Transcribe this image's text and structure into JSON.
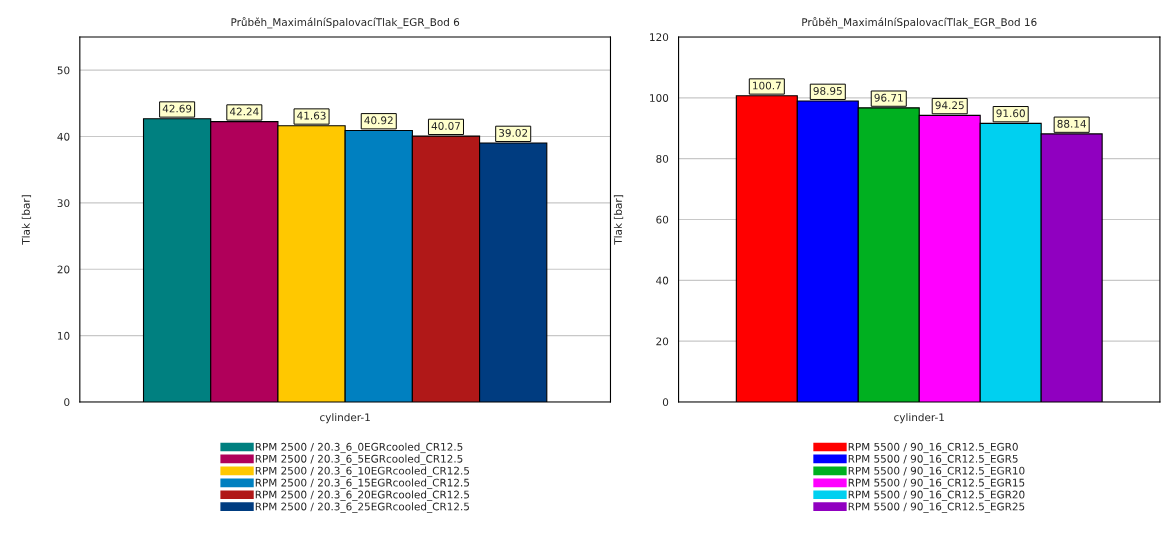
{
  "chart_data": [
    {
      "type": "bar",
      "title": "Průběh_MaximálníSpalovacíTlak_EGR_Bod 6",
      "ylabel": "Tlak [bar]",
      "categories": [
        "cylinder-1"
      ],
      "ylim": [
        0,
        55
      ],
      "yticks": [
        0,
        10,
        20,
        30,
        40,
        50
      ],
      "grid": "y",
      "legend": "bottom",
      "series": [
        {
          "name": "RPM 2500 / 20.3_6_0EGRcooled_CR12.5",
          "color": "#008080",
          "values": [
            42.69
          ],
          "value_labels": [
            "42.69"
          ]
        },
        {
          "name": "RPM 2500 / 20.3_6_5EGRcooled_CR12.5",
          "color": "#b0005a",
          "values": [
            42.24
          ],
          "value_labels": [
            "42.24"
          ]
        },
        {
          "name": "RPM 2500 / 20.3_6_10EGRcooled_CR12.5",
          "color": "#ffc800",
          "values": [
            41.63
          ],
          "value_labels": [
            "41.63"
          ]
        },
        {
          "name": "RPM 2500 / 20.3_6_15EGRcooled_CR12.5",
          "color": "#0080c0",
          "values": [
            40.92
          ],
          "value_labels": [
            "40.92"
          ]
        },
        {
          "name": "RPM 2500 / 20.3_6_20EGRcooled_CR12.5",
          "color": "#b01818",
          "values": [
            40.07
          ],
          "value_labels": [
            "40.07"
          ]
        },
        {
          "name": "RPM 2500 / 20.3_6_25EGRcooled_CR12.5",
          "color": "#003c80",
          "values": [
            39.02
          ],
          "value_labels": [
            "39.02"
          ]
        }
      ]
    },
    {
      "type": "bar",
      "title": "Průběh_MaximálníSpalovacíTlak_EGR_Bod 16",
      "ylabel": "Tlak [bar]",
      "categories": [
        "cylinder-1"
      ],
      "ylim": [
        0,
        120
      ],
      "yticks": [
        0,
        20,
        40,
        60,
        80,
        100,
        120
      ],
      "grid": "y",
      "legend": "bottom",
      "series": [
        {
          "name": "RPM 5500 / 90_16_CR12.5_EGR0",
          "color": "#ff0000",
          "values": [
            100.7
          ],
          "value_labels": [
            "100.7"
          ]
        },
        {
          "name": "RPM 5500 / 90_16_CR12.5_EGR5",
          "color": "#0000ff",
          "values": [
            98.95
          ],
          "value_labels": [
            "98.95"
          ]
        },
        {
          "name": "RPM 5500 / 90_16_CR12.5_EGR10",
          "color": "#00b020",
          "values": [
            96.71
          ],
          "value_labels": [
            "96.71"
          ]
        },
        {
          "name": "RPM 5500 / 90_16_CR12.5_EGR15",
          "color": "#ff00ff",
          "values": [
            94.25
          ],
          "value_labels": [
            "94.25"
          ]
        },
        {
          "name": "RPM 5500 / 90_16_CR12.5_EGR20",
          "color": "#00d0f0",
          "values": [
            91.6
          ],
          "value_labels": [
            "91.60"
          ]
        },
        {
          "name": "RPM 5500 / 90_16_CR12.5_EGR25",
          "color": "#9000c0",
          "values": [
            88.14
          ],
          "value_labels": [
            "88.14"
          ]
        }
      ]
    }
  ]
}
